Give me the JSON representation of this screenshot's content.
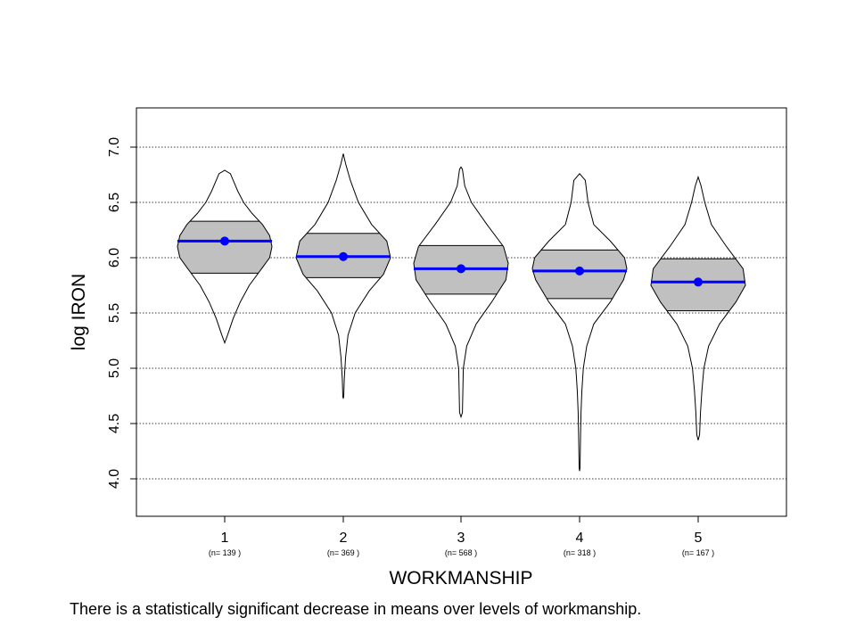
{
  "chart_data": {
    "type": "violin",
    "title": "",
    "xlabel": "WORKMANSHIP",
    "ylabel": "log IRON",
    "ylim": [
      3.65,
      7.35
    ],
    "yticks": [
      "4.0",
      "4.5",
      "5.0",
      "5.5",
      "6.0",
      "6.5",
      "7.0"
    ],
    "grid": "horizontal-dotted",
    "categories": [
      "1",
      "2",
      "3",
      "4",
      "5"
    ],
    "counts": [
      "(n= 139 )",
      "(n= 369 )",
      "(n= 568 )",
      "(n= 318 )",
      "(n= 167 )"
    ],
    "means": [
      6.15,
      6.01,
      5.9,
      5.88,
      5.78
    ],
    "q1": [
      5.86,
      5.82,
      5.67,
      5.63,
      5.52
    ],
    "q3": [
      6.33,
      6.22,
      6.11,
      6.07,
      5.99
    ],
    "min": [
      5.23,
      4.73,
      4.56,
      4.07,
      4.35
    ],
    "max": [
      6.79,
      6.94,
      6.82,
      6.76,
      6.73
    ],
    "density": [
      [
        [
          5.23,
          0.0
        ],
        [
          5.3,
          0.06
        ],
        [
          5.45,
          0.18
        ],
        [
          5.6,
          0.33
        ],
        [
          5.75,
          0.52
        ],
        [
          5.9,
          0.78
        ],
        [
          6.0,
          0.95
        ],
        [
          6.1,
          1.0
        ],
        [
          6.2,
          0.95
        ],
        [
          6.3,
          0.8
        ],
        [
          6.4,
          0.58
        ],
        [
          6.5,
          0.4
        ],
        [
          6.6,
          0.28
        ],
        [
          6.7,
          0.18
        ],
        [
          6.76,
          0.12
        ],
        [
          6.79,
          0.0
        ]
      ],
      [
        [
          4.73,
          0.0
        ],
        [
          4.74,
          0.01
        ],
        [
          4.9,
          0.02
        ],
        [
          5.1,
          0.05
        ],
        [
          5.3,
          0.1
        ],
        [
          5.5,
          0.25
        ],
        [
          5.7,
          0.55
        ],
        [
          5.85,
          0.85
        ],
        [
          6.0,
          1.0
        ],
        [
          6.15,
          0.92
        ],
        [
          6.3,
          0.6
        ],
        [
          6.5,
          0.32
        ],
        [
          6.7,
          0.15
        ],
        [
          6.85,
          0.05
        ],
        [
          6.94,
          0.0
        ]
      ],
      [
        [
          4.56,
          0.0
        ],
        [
          4.6,
          0.03
        ],
        [
          4.8,
          0.04
        ],
        [
          5.0,
          0.05
        ],
        [
          5.2,
          0.12
        ],
        [
          5.4,
          0.32
        ],
        [
          5.6,
          0.65
        ],
        [
          5.8,
          0.95
        ],
        [
          5.95,
          1.0
        ],
        [
          6.1,
          0.9
        ],
        [
          6.3,
          0.55
        ],
        [
          6.5,
          0.22
        ],
        [
          6.65,
          0.08
        ],
        [
          6.8,
          0.03
        ],
        [
          6.82,
          0.0
        ]
      ],
      [
        [
          4.07,
          0.0
        ],
        [
          4.1,
          0.01
        ],
        [
          4.4,
          0.02
        ],
        [
          4.6,
          0.03
        ],
        [
          4.8,
          0.05
        ],
        [
          5.0,
          0.08
        ],
        [
          5.2,
          0.15
        ],
        [
          5.4,
          0.3
        ],
        [
          5.6,
          0.65
        ],
        [
          5.8,
          0.93
        ],
        [
          5.9,
          1.0
        ],
        [
          6.0,
          0.95
        ],
        [
          6.15,
          0.65
        ],
        [
          6.3,
          0.3
        ],
        [
          6.5,
          0.18
        ],
        [
          6.7,
          0.12
        ],
        [
          6.76,
          0.0
        ]
      ],
      [
        [
          4.35,
          0.0
        ],
        [
          4.4,
          0.03
        ],
        [
          4.6,
          0.05
        ],
        [
          4.8,
          0.08
        ],
        [
          5.0,
          0.12
        ],
        [
          5.2,
          0.22
        ],
        [
          5.4,
          0.45
        ],
        [
          5.6,
          0.8
        ],
        [
          5.75,
          1.0
        ],
        [
          5.9,
          0.95
        ],
        [
          6.1,
          0.6
        ],
        [
          6.3,
          0.28
        ],
        [
          6.5,
          0.14
        ],
        [
          6.65,
          0.06
        ],
        [
          6.73,
          0.0
        ]
      ]
    ]
  },
  "caption": "There is a statistically significant decrease in means over levels of workmanship.",
  "colors": {
    "box_fill": "#c0c0c0",
    "mean": "#0000ff"
  }
}
